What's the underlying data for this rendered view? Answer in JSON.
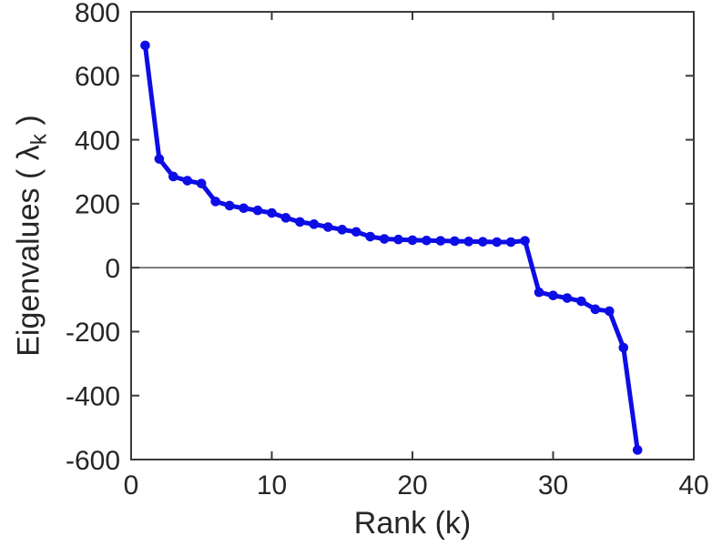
{
  "figure": {
    "background_color": "#ffffff",
    "axis_color": "#3a3a3a",
    "text_color": "#262626"
  },
  "chart_data": {
    "type": "line",
    "title": "",
    "xlabel": "Rank (k)",
    "ylabel": "Eigenvalues ( λk )",
    "ylabel_parts": {
      "prefix": "Eigenvalues ( ",
      "symbol": "λ",
      "subscript": "k",
      "suffix": " )"
    },
    "series": [
      {
        "name": "eigenvalues",
        "x": [
          1,
          2,
          3,
          4,
          5,
          6,
          7,
          8,
          9,
          10,
          11,
          12,
          13,
          14,
          15,
          16,
          17,
          18,
          19,
          20,
          21,
          22,
          23,
          24,
          25,
          26,
          27,
          28,
          29,
          30,
          31,
          32,
          33,
          34,
          35,
          36
        ],
        "values": [
          695,
          340,
          285,
          272,
          263,
          207,
          194,
          186,
          179,
          171,
          156,
          143,
          136,
          127,
          119,
          112,
          97,
          90,
          88,
          86,
          85,
          84,
          83,
          82,
          81,
          80,
          80,
          84,
          -77,
          -87,
          -95,
          -105,
          -130,
          -136,
          -250,
          -570
        ],
        "line_color": "#0d0de6",
        "marker": "circle"
      }
    ],
    "xlim": [
      0,
      40
    ],
    "ylim": [
      -600,
      800
    ],
    "xticks": [
      0,
      10,
      20,
      30,
      40
    ],
    "yticks": [
      800,
      600,
      400,
      200,
      0,
      -200,
      -400,
      -600
    ],
    "grid": false,
    "box": true,
    "tick_direction": "in",
    "zero_line": true,
    "legend": ""
  }
}
